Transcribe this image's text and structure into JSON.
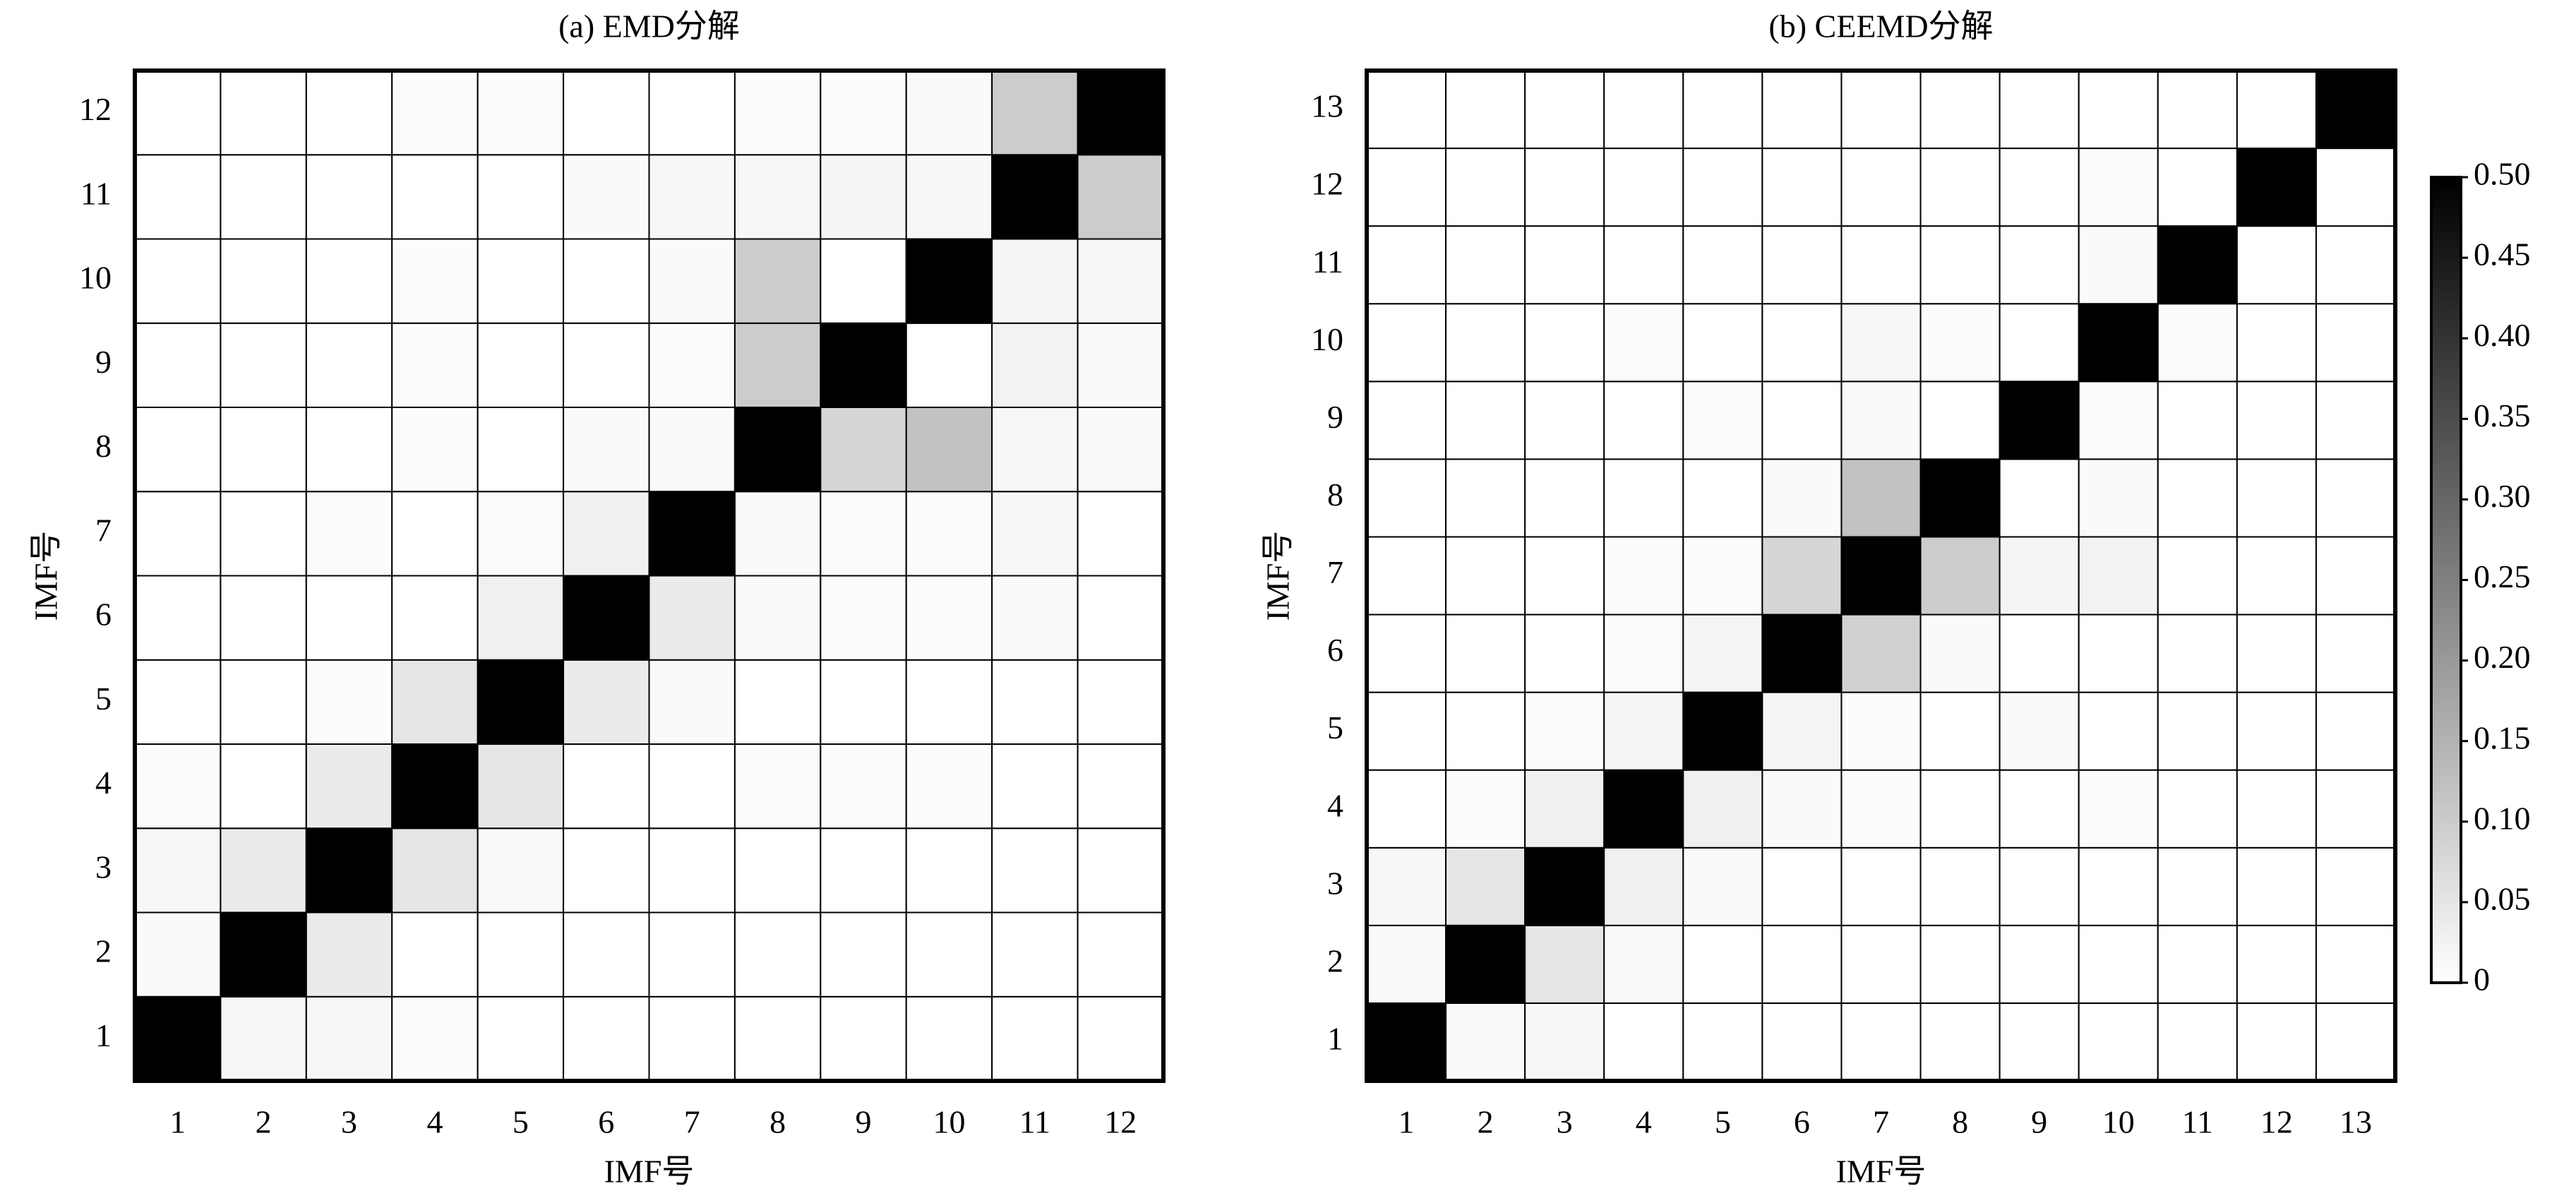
{
  "chart_data": [
    {
      "type": "heatmap",
      "title": "(a) EMD分解",
      "xlabel": "IMF号",
      "ylabel": "IMF号",
      "x": [
        1,
        2,
        3,
        4,
        5,
        6,
        7,
        8,
        9,
        10,
        11,
        12
      ],
      "y": [
        1,
        2,
        3,
        4,
        5,
        6,
        7,
        8,
        9,
        10,
        11,
        12
      ],
      "zlim": [
        0,
        0.5
      ],
      "colormap": [
        "#ffffff",
        "#000000"
      ],
      "z": [
        [
          0.5,
          0.015,
          0.015,
          0.005,
          0,
          0,
          0,
          0,
          0,
          0,
          0,
          0
        ],
        [
          0.01,
          0.5,
          0.04,
          0,
          0,
          0,
          0,
          0,
          0,
          0,
          0,
          0
        ],
        [
          0.015,
          0.04,
          0.5,
          0.05,
          0.01,
          0,
          0,
          0,
          0,
          0,
          0,
          0
        ],
        [
          0.005,
          0,
          0.04,
          0.5,
          0.05,
          0,
          0,
          0.005,
          0.005,
          0.005,
          0,
          0
        ],
        [
          0,
          0,
          0.005,
          0.05,
          0.5,
          0.04,
          0.01,
          0,
          0,
          0,
          0,
          0
        ],
        [
          0,
          0,
          0,
          0,
          0.03,
          0.5,
          0.04,
          0.01,
          0.005,
          0.005,
          0.01,
          0
        ],
        [
          0,
          0,
          0.005,
          0,
          0.005,
          0.03,
          0.5,
          0.01,
          0.005,
          0.005,
          0.015,
          0
        ],
        [
          0,
          0,
          0,
          0.005,
          0,
          0.01,
          0.01,
          0.5,
          0.08,
          0.12,
          0.015,
          0.01
        ],
        [
          0,
          0,
          0,
          0.005,
          0,
          0,
          0.005,
          0.1,
          0.5,
          0,
          0.025,
          0.01
        ],
        [
          0,
          0,
          0,
          0.005,
          0,
          0,
          0.01,
          0.1,
          0,
          0.5,
          0.02,
          0.015
        ],
        [
          0,
          0,
          0,
          0,
          0,
          0.01,
          0.015,
          0.015,
          0.02,
          0.015,
          0.5,
          0.1
        ],
        [
          0,
          0,
          0,
          0.005,
          0.005,
          0,
          0,
          0.005,
          0.005,
          0.01,
          0.1,
          0.5
        ]
      ]
    },
    {
      "type": "heatmap",
      "title": "(b) CEEMD分解",
      "xlabel": "IMF号",
      "ylabel": "IMF号",
      "x": [
        1,
        2,
        3,
        4,
        5,
        6,
        7,
        8,
        9,
        10,
        11,
        12,
        13
      ],
      "y": [
        1,
        2,
        3,
        4,
        5,
        6,
        7,
        8,
        9,
        10,
        11,
        12,
        13
      ],
      "zlim": [
        0,
        0.5
      ],
      "colormap": [
        "#ffffff",
        "#000000"
      ],
      "colorbar_ticks": [
        0,
        0.05,
        {
          "value": 0.1,
          "label": "0.10"
        },
        0.15,
        {
          "value": 0.2,
          "label": "0.20"
        },
        0.25,
        {
          "value": 0.3,
          "label": "0.30"
        },
        0.35,
        {
          "value": 0.4,
          "label": "0.40"
        },
        0.45,
        {
          "value": 0.5,
          "label": "0.50"
        }
      ],
      "z": [
        [
          0.5,
          0.01,
          0.015,
          0,
          0,
          0,
          0,
          0,
          0,
          0,
          0,
          0,
          0
        ],
        [
          0.01,
          0.5,
          0.05,
          0.01,
          0,
          0,
          0,
          0,
          0,
          0,
          0,
          0,
          0
        ],
        [
          0.015,
          0.05,
          0.5,
          0.03,
          0.01,
          0,
          0,
          0,
          0,
          0,
          0,
          0,
          0
        ],
        [
          0,
          0.005,
          0.03,
          0.5,
          0.03,
          0.01,
          0.005,
          0,
          0,
          0.005,
          0,
          0,
          0
        ],
        [
          0,
          0,
          0.005,
          0.02,
          0.5,
          0.02,
          0.005,
          0,
          0.01,
          0,
          0,
          0,
          0
        ],
        [
          0,
          0,
          0,
          0.005,
          0.02,
          0.5,
          0.09,
          0.01,
          0,
          0,
          0,
          0,
          0
        ],
        [
          0,
          0,
          0,
          0.005,
          0.005,
          0.08,
          0.5,
          0.1,
          0.02,
          0.025,
          0,
          0,
          0
        ],
        [
          0,
          0,
          0,
          0,
          0,
          0.01,
          0.12,
          0.5,
          0,
          0.01,
          0,
          0,
          0
        ],
        [
          0,
          0,
          0,
          0,
          0.005,
          0,
          0.01,
          0,
          0.5,
          0.005,
          0,
          0,
          0
        ],
        [
          0,
          0,
          0,
          0.005,
          0,
          0,
          0.015,
          0.005,
          0,
          0.5,
          0.005,
          0,
          0
        ],
        [
          0,
          0,
          0,
          0,
          0,
          0,
          0,
          0,
          0,
          0.01,
          0.5,
          0,
          0
        ],
        [
          0,
          0,
          0,
          0,
          0,
          0,
          0,
          0,
          0,
          0.005,
          0,
          0.5,
          0
        ],
        [
          0,
          0,
          0,
          0,
          0,
          0,
          0,
          0,
          0,
          0,
          0,
          0,
          0.5
        ]
      ]
    }
  ]
}
